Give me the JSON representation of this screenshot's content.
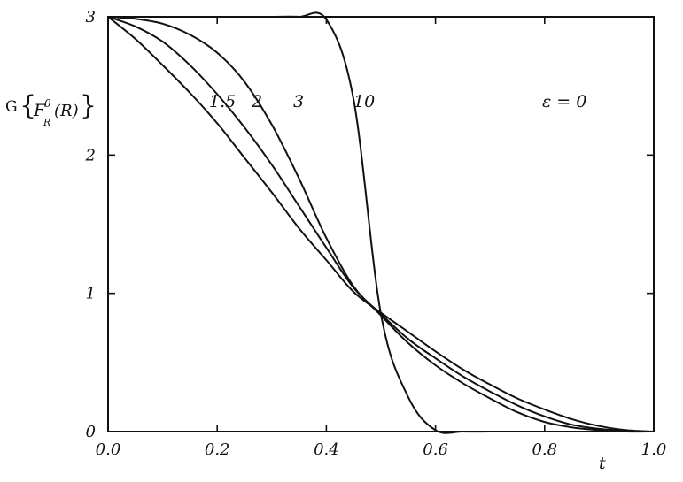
{
  "chart_data": {
    "type": "line",
    "title": "",
    "xlabel": "t",
    "ylabel": "G{F_R^0(R)}",
    "xlim": [
      0,
      1
    ],
    "ylim": [
      0,
      3
    ],
    "xticks": [
      {
        "value": 0.0,
        "label": "0.0"
      },
      {
        "value": 0.2,
        "label": "0.2"
      },
      {
        "value": 0.4,
        "label": "0.4"
      },
      {
        "value": 0.6,
        "label": "0.6"
      },
      {
        "value": 0.8,
        "label": "0.8"
      },
      {
        "value": 1.0,
        "label": "1.0"
      }
    ],
    "yticks": [
      {
        "value": 0,
        "label": "0"
      },
      {
        "value": 1,
        "label": "1"
      },
      {
        "value": 2,
        "label": "2"
      },
      {
        "value": 3,
        "label": "3"
      }
    ],
    "annotation": "ε = 0",
    "grid": false,
    "x": [
      0.0,
      0.05,
      0.1,
      0.15,
      0.2,
      0.25,
      0.3,
      0.35,
      0.4,
      0.45,
      0.5,
      0.55,
      0.6,
      0.65,
      0.7,
      0.75,
      0.8,
      0.85,
      0.9,
      0.95,
      1.0
    ],
    "series": [
      {
        "name": "1.5",
        "values": [
          3.0,
          2.84,
          2.65,
          2.45,
          2.23,
          1.98,
          1.73,
          1.47,
          1.24,
          1.01,
          0.86,
          0.72,
          0.58,
          0.45,
          0.34,
          0.24,
          0.16,
          0.09,
          0.04,
          0.01,
          0.0
        ]
      },
      {
        "name": "2",
        "values": [
          3.0,
          2.93,
          2.82,
          2.65,
          2.44,
          2.2,
          1.93,
          1.63,
          1.33,
          1.04,
          0.85,
          0.67,
          0.53,
          0.4,
          0.29,
          0.19,
          0.11,
          0.05,
          0.02,
          0.005,
          0.0
        ]
      },
      {
        "name": "3",
        "values": [
          3.0,
          2.985,
          2.95,
          2.87,
          2.74,
          2.53,
          2.22,
          1.83,
          1.4,
          1.05,
          0.84,
          0.64,
          0.48,
          0.35,
          0.24,
          0.14,
          0.07,
          0.03,
          0.01,
          0.0,
          0.0
        ]
      },
      {
        "name": "10",
        "values": [
          3.0,
          3.0,
          3.0,
          3.0,
          3.0,
          3.0,
          3.0,
          3.0,
          2.98,
          2.4,
          0.85,
          0.25,
          0.01,
          0.0,
          0.0,
          0.0,
          0.0,
          0.0,
          0.0,
          0.0,
          0.0
        ]
      }
    ]
  },
  "curve_labels": [
    "1.5",
    "2",
    "3",
    "10"
  ],
  "ylabel_parts": {
    "prefix": "G",
    "open_brace": "{",
    "letter": "F",
    "superscript": "0",
    "subscript": "R",
    "argument": "(R)",
    "close_brace": "}"
  }
}
